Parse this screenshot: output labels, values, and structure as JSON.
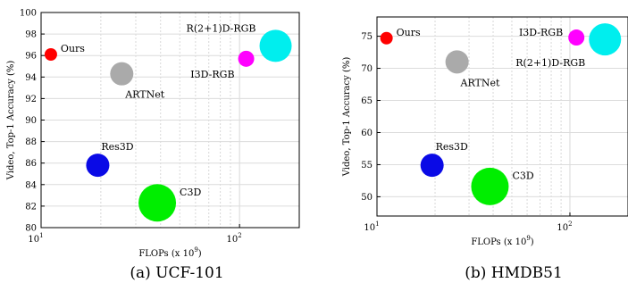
{
  "chart_data": [
    {
      "type": "scatter",
      "xlabel": "FLOPs (x 10",
      "xlabel_sup": "9",
      "xlabel_end": ")",
      "ylabel": "Video, Top-1 Accuracy (%)",
      "x_scale": "log",
      "xlim": [
        10,
        200
      ],
      "ylim": [
        80,
        100
      ],
      "yticks": [
        80,
        82,
        84,
        86,
        88,
        90,
        92,
        94,
        96,
        98,
        100
      ],
      "xticks": [
        {
          "base": "10",
          "exp": "1"
        },
        {
          "base": "10",
          "exp": "2"
        }
      ],
      "grid": true,
      "caption": "(a) UCF-101",
      "points": [
        {
          "label": "Ours",
          "x": 11.2,
          "y": 96.1,
          "size": 7,
          "color": "#ff0000",
          "label_pos": "right-up"
        },
        {
          "label": "ARTNet",
          "x": 25.5,
          "y": 94.3,
          "size": 13,
          "color": "#aaaaaa",
          "label_pos": "below-right"
        },
        {
          "label": "Res3D",
          "x": 19.3,
          "y": 85.8,
          "size": 13,
          "color": "#0a0ae6",
          "label_pos": "above-right"
        },
        {
          "label": "C3D",
          "x": 38.5,
          "y": 82.3,
          "size": 21,
          "color": "#00ee00",
          "label_pos": "right-up"
        },
        {
          "label": "I3D-RGB",
          "x": 108,
          "y": 95.7,
          "size": 9,
          "color": "#ff00ff",
          "label_pos": "below-left"
        },
        {
          "label": "R(2+1)D-RGB",
          "x": 152,
          "y": 96.9,
          "size": 18,
          "color": "#00eeee",
          "label_pos": "above-left"
        }
      ]
    },
    {
      "type": "scatter",
      "xlabel": "FLOPs (x 10",
      "xlabel_sup": "9",
      "xlabel_end": ")",
      "ylabel": "Video, Top-1 Accuracy (%)",
      "x_scale": "log",
      "xlim": [
        10,
        200
      ],
      "ylim": [
        47,
        78
      ],
      "yticks": [
        50,
        55,
        60,
        65,
        70,
        75
      ],
      "xticks": [
        {
          "base": "10",
          "exp": "1"
        },
        {
          "base": "10",
          "exp": "2"
        }
      ],
      "grid": true,
      "caption": "(b) HMDB51",
      "points": [
        {
          "label": "Ours",
          "x": 11.2,
          "y": 74.7,
          "size": 7,
          "color": "#ff0000",
          "label_pos": "right-up"
        },
        {
          "label": "ARTNet",
          "x": 26,
          "y": 71.0,
          "size": 13,
          "color": "#aaaaaa",
          "label_pos": "below-right"
        },
        {
          "label": "Res3D",
          "x": 19.3,
          "y": 54.9,
          "size": 13,
          "color": "#0a0ae6",
          "label_pos": "above-right"
        },
        {
          "label": "C3D",
          "x": 38.5,
          "y": 51.6,
          "size": 21,
          "color": "#00ee00",
          "label_pos": "right-up"
        },
        {
          "label": "I3D-RGB",
          "x": 108,
          "y": 74.8,
          "size": 9,
          "color": "#ff00ff",
          "label_pos": "left"
        },
        {
          "label": "R(2+1)D-RGB",
          "x": 152,
          "y": 74.5,
          "size": 18,
          "color": "#00eeee",
          "label_pos": "below-left"
        }
      ]
    }
  ]
}
